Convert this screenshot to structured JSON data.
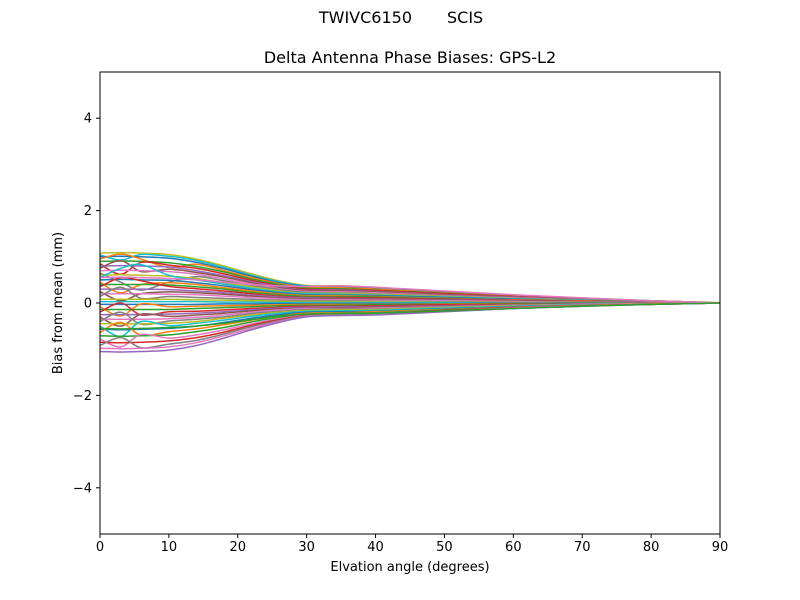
{
  "figure": {
    "background": "#ffffff",
    "suptitle": {
      "left": "TWIVC6150",
      "right": "SCIS"
    }
  },
  "chart_data": {
    "type": "line",
    "suptitle_left": "TWIVC6150",
    "suptitle_right": "SCIS",
    "title": "Delta Antenna Phase Biases: GPS-L2",
    "xlabel": "Elvation angle (degrees)",
    "ylabel": "Bias from mean (mm)",
    "xlim": [
      0,
      90
    ],
    "ylim": [
      -5,
      5
    ],
    "xticks": [
      0,
      10,
      20,
      30,
      40,
      50,
      60,
      70,
      80,
      90
    ],
    "yticks": [
      -4,
      -2,
      0,
      2,
      4
    ],
    "grid": false,
    "legend": false,
    "axis_color": "#000000",
    "background": "#ffffff",
    "line_width": 1.5,
    "palette": [
      "#1f77b4",
      "#ff7f0e",
      "#2ca02c",
      "#d62728",
      "#9467bd",
      "#8c564b",
      "#e377c2",
      "#7f7f7f",
      "#bcbd22",
      "#17becf"
    ],
    "x": [
      0,
      3,
      6,
      10,
      14,
      18,
      22,
      26,
      30,
      35,
      40,
      50,
      60,
      70,
      80,
      90
    ],
    "series": [
      {
        "c": 8,
        "v": [
          1.08,
          1.09,
          1.08,
          1.05,
          0.95,
          0.8,
          0.63,
          0.48,
          0.38,
          0.37,
          0.34,
          0.25,
          0.17,
          0.11,
          0.05,
          0.01
        ]
      },
      {
        "c": 9,
        "v": [
          1.04,
          0.93,
          1.05,
          1.01,
          0.92,
          0.77,
          0.6,
          0.46,
          0.37,
          0.36,
          0.33,
          0.24,
          0.16,
          0.1,
          0.05,
          0.0
        ]
      },
      {
        "c": 0,
        "v": [
          1.0,
          1.01,
          1.0,
          0.97,
          0.88,
          0.74,
          0.58,
          0.44,
          0.36,
          0.35,
          0.32,
          0.23,
          0.16,
          0.1,
          0.05,
          0.0
        ]
      },
      {
        "c": 1,
        "v": [
          0.95,
          1.06,
          0.95,
          0.77,
          0.84,
          0.7,
          0.55,
          0.42,
          0.34,
          0.33,
          0.3,
          0.22,
          0.15,
          0.09,
          0.05,
          0.0
        ]
      },
      {
        "c": 2,
        "v": [
          0.9,
          0.91,
          0.9,
          0.87,
          0.79,
          0.67,
          0.52,
          0.4,
          0.32,
          0.31,
          0.28,
          0.21,
          0.14,
          0.09,
          0.04,
          0.0
        ]
      },
      {
        "c": 3,
        "v": [
          0.85,
          0.62,
          0.88,
          0.82,
          0.75,
          0.63,
          0.49,
          0.37,
          0.3,
          0.29,
          0.27,
          0.2,
          0.14,
          0.09,
          0.04,
          0.0
        ]
      },
      {
        "c": 4,
        "v": [
          0.8,
          0.81,
          0.8,
          0.78,
          0.7,
          0.59,
          0.46,
          0.35,
          0.28,
          0.28,
          0.25,
          0.18,
          0.13,
          0.08,
          0.04,
          0.0
        ]
      },
      {
        "c": 5,
        "v": [
          0.75,
          0.92,
          0.68,
          0.73,
          0.66,
          0.56,
          0.44,
          0.33,
          0.27,
          0.26,
          0.24,
          0.17,
          0.12,
          0.08,
          0.04,
          0.0
        ]
      },
      {
        "c": 6,
        "v": [
          0.7,
          0.71,
          0.7,
          0.68,
          0.62,
          0.52,
          0.41,
          0.31,
          0.25,
          0.24,
          0.22,
          0.16,
          0.11,
          0.07,
          0.04,
          0.0
        ]
      },
      {
        "c": 7,
        "v": [
          0.65,
          0.45,
          0.28,
          0.45,
          0.57,
          0.48,
          0.38,
          0.29,
          0.23,
          0.22,
          0.2,
          0.15,
          0.1,
          0.07,
          0.03,
          0.0
        ]
      },
      {
        "c": 8,
        "v": [
          0.6,
          0.61,
          0.6,
          0.58,
          0.53,
          0.44,
          0.35,
          0.26,
          0.21,
          0.21,
          0.19,
          0.14,
          0.1,
          0.06,
          0.03,
          0.0
        ]
      },
      {
        "c": 9,
        "v": [
          0.55,
          0.75,
          0.83,
          0.6,
          0.5,
          0.41,
          0.32,
          0.24,
          0.2,
          0.19,
          0.17,
          0.13,
          0.09,
          0.06,
          0.03,
          0.0
        ]
      },
      {
        "c": 0,
        "v": [
          0.5,
          0.51,
          0.5,
          0.49,
          0.44,
          0.37,
          0.29,
          0.22,
          0.18,
          0.17,
          0.16,
          0.12,
          0.08,
          0.05,
          0.03,
          0.0
        ]
      },
      {
        "c": 1,
        "v": [
          0.45,
          0.22,
          0.4,
          0.44,
          0.4,
          0.33,
          0.26,
          0.2,
          0.16,
          0.16,
          0.14,
          0.1,
          0.07,
          0.05,
          0.02,
          0.0
        ]
      },
      {
        "c": 2,
        "v": [
          0.4,
          0.4,
          0.4,
          0.39,
          0.35,
          0.3,
          0.23,
          0.18,
          0.14,
          0.14,
          0.13,
          0.09,
          0.06,
          0.04,
          0.02,
          0.0
        ]
      },
      {
        "c": 3,
        "v": [
          0.35,
          0.55,
          0.48,
          0.36,
          0.31,
          0.26,
          0.2,
          0.15,
          0.12,
          0.12,
          0.11,
          0.08,
          0.06,
          0.04,
          0.02,
          0.0
        ]
      },
      {
        "c": 4,
        "v": [
          0.3,
          0.3,
          0.3,
          0.29,
          0.26,
          0.22,
          0.17,
          0.13,
          0.11,
          0.1,
          0.09,
          0.07,
          0.05,
          0.03,
          0.02,
          0.0
        ]
      },
      {
        "c": 5,
        "v": [
          0.25,
          0.05,
          0.2,
          0.24,
          0.22,
          0.19,
          0.15,
          0.11,
          0.09,
          0.09,
          0.08,
          0.06,
          0.04,
          0.03,
          0.01,
          0.0
        ]
      },
      {
        "c": 6,
        "v": [
          0.2,
          0.2,
          0.2,
          0.19,
          0.18,
          0.15,
          0.12,
          0.09,
          0.07,
          0.07,
          0.06,
          0.05,
          0.03,
          0.02,
          0.01,
          0.0
        ]
      },
      {
        "c": 7,
        "v": [
          0.14,
          0.34,
          0.1,
          0.14,
          0.12,
          0.1,
          0.08,
          0.06,
          0.05,
          0.05,
          0.04,
          0.03,
          0.02,
          0.01,
          0.01,
          0.0
        ]
      },
      {
        "c": 8,
        "v": [
          0.08,
          0.08,
          0.08,
          0.08,
          0.07,
          0.06,
          0.05,
          0.04,
          0.03,
          0.03,
          0.03,
          0.02,
          0.01,
          0.01,
          0.0,
          0.0
        ]
      },
      {
        "c": 9,
        "v": [
          0.03,
          0.03,
          0.03,
          0.03,
          0.03,
          0.02,
          0.02,
          0.01,
          0.01,
          0.01,
          0.01,
          0.01,
          0.0,
          0.0,
          0.0,
          0.0
        ]
      },
      {
        "c": 0,
        "v": [
          -0.03,
          -0.03,
          -0.03,
          -0.03,
          -0.03,
          -0.02,
          -0.02,
          -0.01,
          -0.01,
          -0.01,
          -0.01,
          -0.01,
          0.0,
          0.0,
          0.0,
          0.0
        ]
      },
      {
        "c": 1,
        "v": [
          -0.08,
          -0.28,
          -0.02,
          -0.08,
          -0.07,
          -0.06,
          -0.05,
          -0.04,
          -0.03,
          -0.03,
          -0.03,
          -0.02,
          -0.01,
          -0.01,
          0.0,
          0.0
        ]
      },
      {
        "c": 2,
        "v": [
          -0.14,
          -0.14,
          -0.14,
          -0.14,
          -0.12,
          -0.1,
          -0.08,
          -0.06,
          -0.05,
          -0.05,
          -0.04,
          -0.03,
          -0.02,
          -0.01,
          -0.01,
          0.0
        ]
      },
      {
        "c": 3,
        "v": [
          -0.2,
          0.0,
          -0.26,
          -0.19,
          -0.18,
          -0.15,
          -0.12,
          -0.09,
          -0.07,
          -0.07,
          -0.06,
          -0.04,
          -0.03,
          -0.02,
          -0.01,
          0.0
        ]
      },
      {
        "c": 4,
        "v": [
          -0.25,
          -0.25,
          -0.25,
          -0.24,
          -0.22,
          -0.19,
          -0.15,
          -0.11,
          -0.09,
          -0.08,
          -0.08,
          -0.06,
          -0.04,
          -0.02,
          -0.01,
          0.0
        ]
      },
      {
        "c": 5,
        "v": [
          -0.3,
          -0.5,
          -0.24,
          -0.29,
          -0.26,
          -0.22,
          -0.17,
          -0.13,
          -0.11,
          -0.1,
          -0.09,
          -0.07,
          -0.04,
          -0.03,
          -0.01,
          0.0
        ]
      },
      {
        "c": 6,
        "v": [
          -0.35,
          -0.35,
          -0.35,
          -0.34,
          -0.31,
          -0.26,
          -0.2,
          -0.15,
          -0.12,
          -0.12,
          -0.11,
          -0.08,
          -0.05,
          -0.03,
          -0.01,
          0.0
        ]
      },
      {
        "c": 7,
        "v": [
          -0.4,
          -0.2,
          -0.46,
          -0.39,
          -0.35,
          -0.3,
          -0.23,
          -0.18,
          -0.14,
          -0.13,
          -0.13,
          -0.09,
          -0.06,
          -0.04,
          -0.02,
          0.0
        ]
      },
      {
        "c": 8,
        "v": [
          -0.45,
          -0.45,
          -0.45,
          -0.44,
          -0.4,
          -0.33,
          -0.26,
          -0.2,
          -0.16,
          -0.15,
          -0.14,
          -0.1,
          -0.06,
          -0.04,
          -0.02,
          0.0
        ]
      },
      {
        "c": 9,
        "v": [
          -0.5,
          -0.72,
          -0.4,
          -0.49,
          -0.44,
          -0.37,
          -0.29,
          -0.22,
          -0.18,
          -0.17,
          -0.16,
          -0.11,
          -0.07,
          -0.04,
          -0.02,
          0.0
        ]
      },
      {
        "c": 0,
        "v": [
          -0.57,
          -0.58,
          -0.57,
          -0.55,
          -0.5,
          -0.42,
          -0.33,
          -0.25,
          -0.2,
          -0.19,
          -0.18,
          -0.13,
          -0.08,
          -0.05,
          -0.02,
          0.0
        ]
      },
      {
        "c": 1,
        "v": [
          -0.64,
          -0.42,
          -0.7,
          -0.62,
          -0.56,
          -0.47,
          -0.37,
          -0.28,
          -0.22,
          -0.21,
          -0.19,
          -0.14,
          -0.09,
          -0.05,
          -0.02,
          0.0
        ]
      },
      {
        "c": 2,
        "v": [
          -0.71,
          -0.72,
          -0.71,
          -0.69,
          -0.62,
          -0.53,
          -0.41,
          -0.31,
          -0.24,
          -0.22,
          -0.21,
          -0.15,
          -0.1,
          -0.06,
          -0.03,
          0.0
        ]
      },
      {
        "c": 6,
        "v": [
          -0.78,
          -0.95,
          -0.68,
          -0.76,
          -0.69,
          -0.58,
          -0.45,
          -0.34,
          -0.26,
          -0.24,
          -0.22,
          -0.16,
          -0.1,
          -0.06,
          -0.03,
          0.0
        ]
      },
      {
        "c": 3,
        "v": [
          -0.85,
          -0.86,
          -0.85,
          -0.82,
          -0.75,
          -0.63,
          -0.48,
          -0.36,
          -0.27,
          -0.24,
          -0.23,
          -0.16,
          -0.1,
          -0.06,
          -0.03,
          0.0
        ]
      },
      {
        "c": 7,
        "v": [
          -0.92,
          -0.75,
          -0.97,
          -0.89,
          -0.81,
          -0.67,
          -0.51,
          -0.38,
          -0.28,
          -0.25,
          -0.24,
          -0.17,
          -0.11,
          -0.06,
          -0.03,
          0.0
        ]
      },
      {
        "c": 6,
        "v": [
          -0.98,
          -0.99,
          -0.98,
          -0.95,
          -0.86,
          -0.71,
          -0.55,
          -0.4,
          -0.29,
          -0.26,
          -0.25,
          -0.18,
          -0.11,
          -0.07,
          -0.03,
          0.0
        ]
      },
      {
        "c": 4,
        "v": [
          -1.05,
          -1.06,
          -1.05,
          -1.02,
          -0.92,
          -0.76,
          -0.58,
          -0.42,
          -0.3,
          -0.27,
          -0.26,
          -0.19,
          -0.12,
          -0.07,
          -0.03,
          0.0
        ]
      },
      {
        "c": 6,
        "v": [
          0.55,
          0.56,
          0.55,
          0.53,
          0.5,
          0.45,
          0.4,
          0.37,
          0.36,
          0.37,
          0.34,
          0.26,
          0.18,
          0.11,
          0.05,
          0.0
        ]
      },
      {
        "c": 2,
        "v": [
          -0.55,
          -0.56,
          -0.55,
          -0.53,
          -0.5,
          -0.44,
          -0.36,
          -0.28,
          -0.24,
          -0.23,
          -0.22,
          -0.17,
          -0.12,
          -0.07,
          -0.03,
          0.0
        ]
      }
    ]
  }
}
